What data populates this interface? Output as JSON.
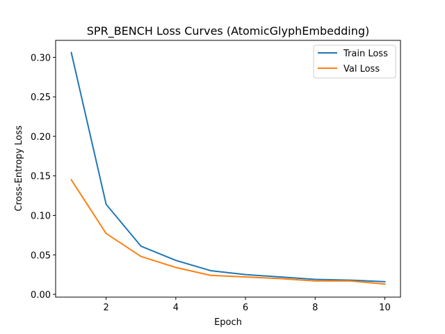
{
  "chart_data": {
    "type": "line",
    "title": "SPR_BENCH Loss Curves (AtomicGlyphEmbedding)",
    "xlabel": "Epoch",
    "ylabel": "Cross-Entropy Loss",
    "xlim": [
      0.55,
      10.45
    ],
    "ylim": [
      -0.0035,
      0.3215
    ],
    "x_ticks": [
      2,
      4,
      6,
      8,
      10
    ],
    "y_ticks": [
      0.0,
      0.05,
      0.1,
      0.15,
      0.2,
      0.25,
      0.3
    ],
    "y_tick_labels": [
      "0.00",
      "0.05",
      "0.10",
      "0.15",
      "0.20",
      "0.25",
      "0.30"
    ],
    "grid": false,
    "legend_position": "top-right",
    "x": [
      1,
      2,
      3,
      4,
      5,
      6,
      7,
      8,
      9,
      10
    ],
    "series": [
      {
        "name": "Train Loss",
        "color": "#1f77b4",
        "values": [
          0.306,
          0.114,
          0.061,
          0.043,
          0.03,
          0.025,
          0.022,
          0.019,
          0.018,
          0.016
        ]
      },
      {
        "name": "Val Loss",
        "color": "#ff7f0e",
        "values": [
          0.145,
          0.077,
          0.048,
          0.034,
          0.024,
          0.022,
          0.02,
          0.017,
          0.017,
          0.013
        ]
      }
    ]
  }
}
